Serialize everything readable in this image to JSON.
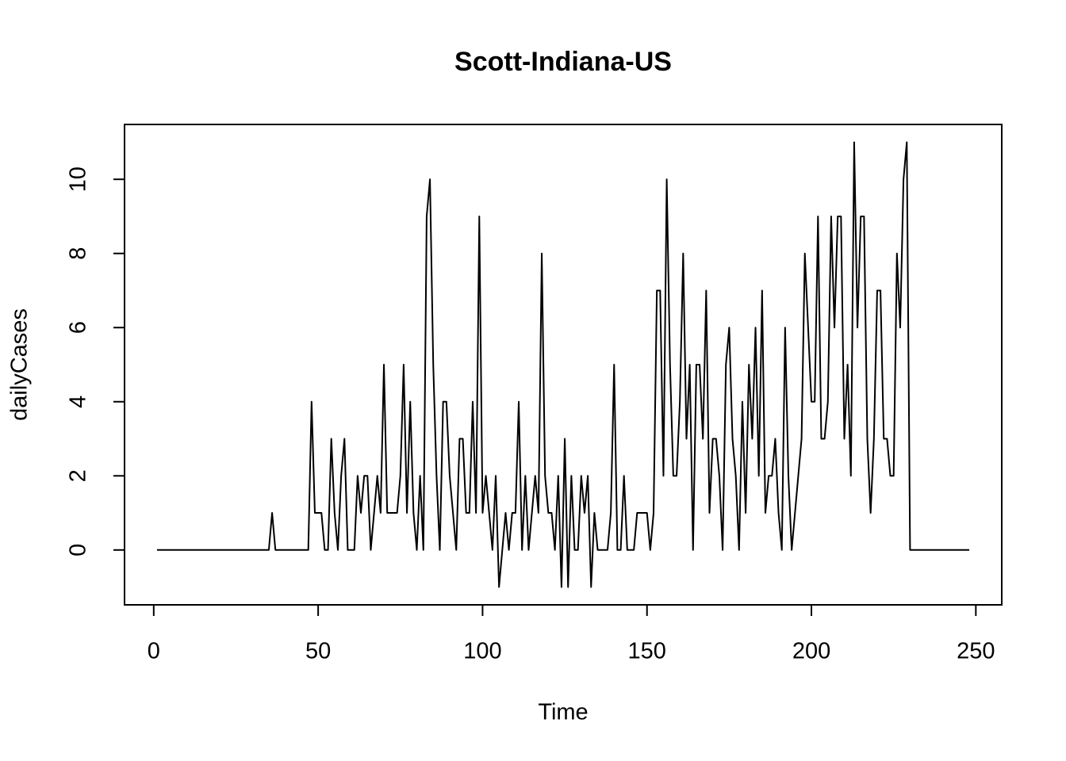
{
  "chart_data": {
    "type": "line",
    "title": "Scott-Indiana-US",
    "xlabel": "Time",
    "ylabel": "dailyCases",
    "color": "#000000",
    "xlim": [
      -8.88,
      257.88
    ],
    "xticks": [
      0,
      50,
      100,
      150,
      200,
      250
    ],
    "ylim": [
      -1.48,
      11.48
    ],
    "yticks": [
      0,
      2,
      4,
      6,
      8,
      10
    ],
    "grid": false,
    "x": [
      1,
      2,
      3,
      4,
      5,
      6,
      7,
      8,
      9,
      10,
      11,
      12,
      13,
      14,
      15,
      16,
      17,
      18,
      19,
      20,
      21,
      22,
      23,
      24,
      25,
      26,
      27,
      28,
      29,
      30,
      31,
      32,
      33,
      34,
      35,
      36,
      37,
      38,
      39,
      40,
      41,
      42,
      43,
      44,
      45,
      46,
      47,
      48,
      49,
      50,
      51,
      52,
      53,
      54,
      55,
      56,
      57,
      58,
      59,
      60,
      61,
      62,
      63,
      64,
      65,
      66,
      67,
      68,
      69,
      70,
      71,
      72,
      73,
      74,
      75,
      76,
      77,
      78,
      79,
      80,
      81,
      82,
      83,
      84,
      85,
      86,
      87,
      88,
      89,
      90,
      91,
      92,
      93,
      94,
      95,
      96,
      97,
      98,
      99,
      100,
      101,
      102,
      103,
      104,
      105,
      106,
      107,
      108,
      109,
      110,
      111,
      112,
      113,
      114,
      115,
      116,
      117,
      118,
      119,
      120,
      121,
      122,
      123,
      124,
      125,
      126,
      127,
      128,
      129,
      130,
      131,
      132,
      133,
      134,
      135,
      136,
      137,
      138,
      139,
      140,
      141,
      142,
      143,
      144,
      145,
      146,
      147,
      148,
      149,
      150,
      151,
      152,
      153,
      154,
      155,
      156,
      157,
      158,
      159,
      160,
      161,
      162,
      163,
      164,
      165,
      166,
      167,
      168,
      169,
      170,
      171,
      172,
      173,
      174,
      175,
      176,
      177,
      178,
      179,
      180,
      181,
      182,
      183,
      184,
      185,
      186,
      187,
      188,
      189,
      190,
      191,
      192,
      193,
      194,
      195,
      196,
      197,
      198,
      199,
      200,
      201,
      202,
      203,
      204,
      205,
      206,
      207,
      208,
      209,
      210,
      211,
      212,
      213,
      214,
      215,
      216,
      217,
      218,
      219,
      220,
      221,
      222,
      223,
      224,
      225,
      226,
      227,
      228,
      229,
      230,
      231,
      232,
      233,
      234,
      235,
      236,
      237,
      238,
      239,
      240,
      241,
      242,
      243,
      244,
      245,
      246,
      247,
      248
    ],
    "values": [
      0,
      0,
      0,
      0,
      0,
      0,
      0,
      0,
      0,
      0,
      0,
      0,
      0,
      0,
      0,
      0,
      0,
      0,
      0,
      0,
      0,
      0,
      0,
      0,
      0,
      0,
      0,
      0,
      0,
      0,
      0,
      0,
      0,
      0,
      0,
      1,
      0,
      0,
      0,
      0,
      0,
      0,
      0,
      0,
      0,
      0,
      0,
      4,
      1,
      1,
      1,
      0,
      0,
      3,
      1,
      0,
      2,
      3,
      0,
      0,
      0,
      2,
      1,
      2,
      2,
      0,
      1,
      2,
      1,
      5,
      1,
      1,
      1,
      1,
      2,
      5,
      1,
      4,
      1,
      0,
      2,
      0,
      9,
      10,
      5,
      2,
      0,
      4,
      4,
      2,
      1,
      0,
      3,
      3,
      1,
      1,
      4,
      1,
      9,
      1,
      2,
      1,
      0,
      2,
      -1,
      0,
      1,
      0,
      1,
      1,
      4,
      0,
      2,
      0,
      1,
      2,
      1,
      8,
      2,
      1,
      1,
      0,
      2,
      -1,
      3,
      -1,
      2,
      0,
      0,
      2,
      1,
      2,
      -1,
      1,
      0,
      0,
      0,
      0,
      1,
      5,
      0,
      0,
      2,
      0,
      0,
      0,
      1,
      1,
      1,
      1,
      0,
      1,
      7,
      7,
      2,
      10,
      5,
      2,
      2,
      4,
      8,
      3,
      5,
      0,
      5,
      5,
      3,
      7,
      1,
      3,
      3,
      2,
      0,
      5,
      6,
      3,
      2,
      0,
      4,
      1,
      5,
      3,
      6,
      2,
      7,
      1,
      2,
      2,
      3,
      1,
      0,
      6,
      2,
      0,
      1,
      2,
      3,
      8,
      6,
      4,
      4,
      9,
      3,
      3,
      4,
      9,
      6,
      9,
      9,
      3,
      5,
      2,
      11,
      6,
      9,
      9,
      3,
      1,
      3,
      7,
      7,
      3,
      3,
      2,
      2,
      8,
      6,
      10,
      11,
      0,
      0,
      0,
      0,
      0,
      0,
      0,
      0,
      0,
      0,
      0,
      0,
      0,
      0,
      0,
      0,
      0,
      0,
      0
    ]
  }
}
